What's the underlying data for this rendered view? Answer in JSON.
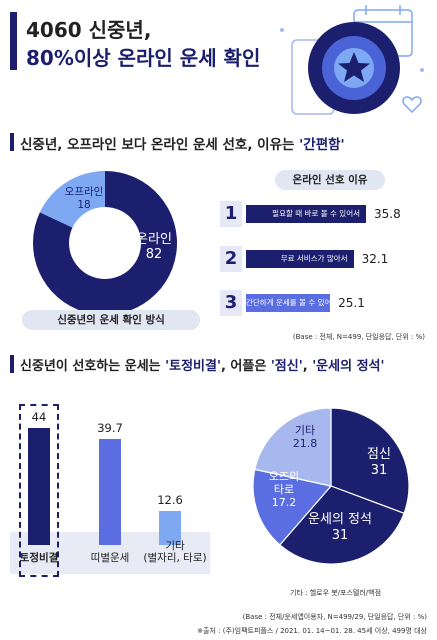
{
  "title": {
    "line1": "4060 신중년,",
    "line2": "80%이상 온라인 운세 확인"
  },
  "section1": {
    "title_prefix": "신중년, 오프라인 보다 온라인 운세 선호, 이유는 ",
    "title_highlight": "'간편함'"
  },
  "section2": {
    "title_part1": "신중년이 선호하는 운세는 ",
    "title_part2": "'토정비결'",
    "title_part3": ", 어플은 ",
    "title_part4": "'점신'",
    "title_part5": ", ",
    "title_part6": "'운세의 정석'"
  },
  "colors": {
    "navy": "#1c1f6e",
    "blue": "#5b6ee1",
    "light_blue": "#7ea8f2",
    "pale_blue": "#a6b8ee",
    "highlight": "#1c1f6e"
  },
  "chart_data": [
    {
      "type": "pie",
      "variant": "donut",
      "title": "신중년의 운세 확인 방식",
      "slices": [
        {
          "label": "온라인",
          "value": 82,
          "color": "#1c1f6e"
        },
        {
          "label": "오프라인",
          "value": 18,
          "color": "#7ea8f2"
        }
      ]
    },
    {
      "type": "bar",
      "orientation": "horizontal",
      "title": "온라인 선호 이유",
      "categories": [
        "필요할 때 바로 볼 수 있어서",
        "무료 서비스가 많아서",
        "간단하게 운세를 볼 수 있어서"
      ],
      "ranks": [
        "1",
        "2",
        "3"
      ],
      "values": [
        35.8,
        32.1,
        25.1
      ],
      "note": "(Base : 전체, N=499, 단일응답, 단위 : %)"
    },
    {
      "type": "bar",
      "orientation": "vertical",
      "categories": [
        "토정비결",
        "띠별운세",
        "기타\n(별자리, 타로)"
      ],
      "values": [
        44,
        39.7,
        12.6
      ],
      "value_labels": [
        "44",
        "39.7",
        "12.6"
      ],
      "colors": [
        "#1c1f6e",
        "#5b6ee1",
        "#7ea8f2"
      ],
      "highlight_index": 0,
      "ylim": [
        0,
        50
      ]
    },
    {
      "type": "pie",
      "slices": [
        {
          "label": "점신",
          "value": 31,
          "color": "#1c1f6e"
        },
        {
          "label": "운세의 정석",
          "value": 31,
          "color": "#1c1f6e"
        },
        {
          "label": "오즈의\n타로",
          "value": 17.2,
          "color": "#5b6ee1"
        },
        {
          "label": "기타",
          "value": 21.8,
          "color": "#a6b8ee"
        }
      ],
      "note": "기타 : 헬로우 봇/포스텔러/백점"
    }
  ],
  "footer": {
    "base_note": "(Base : 전체/운세앱이용자, N=499/29, 단일응답, 단위 : %)",
    "source": "※출처 : (주)임팩트피플스 / 2021. 01. 14~01. 28. 45세 이상, 499명 대상"
  }
}
